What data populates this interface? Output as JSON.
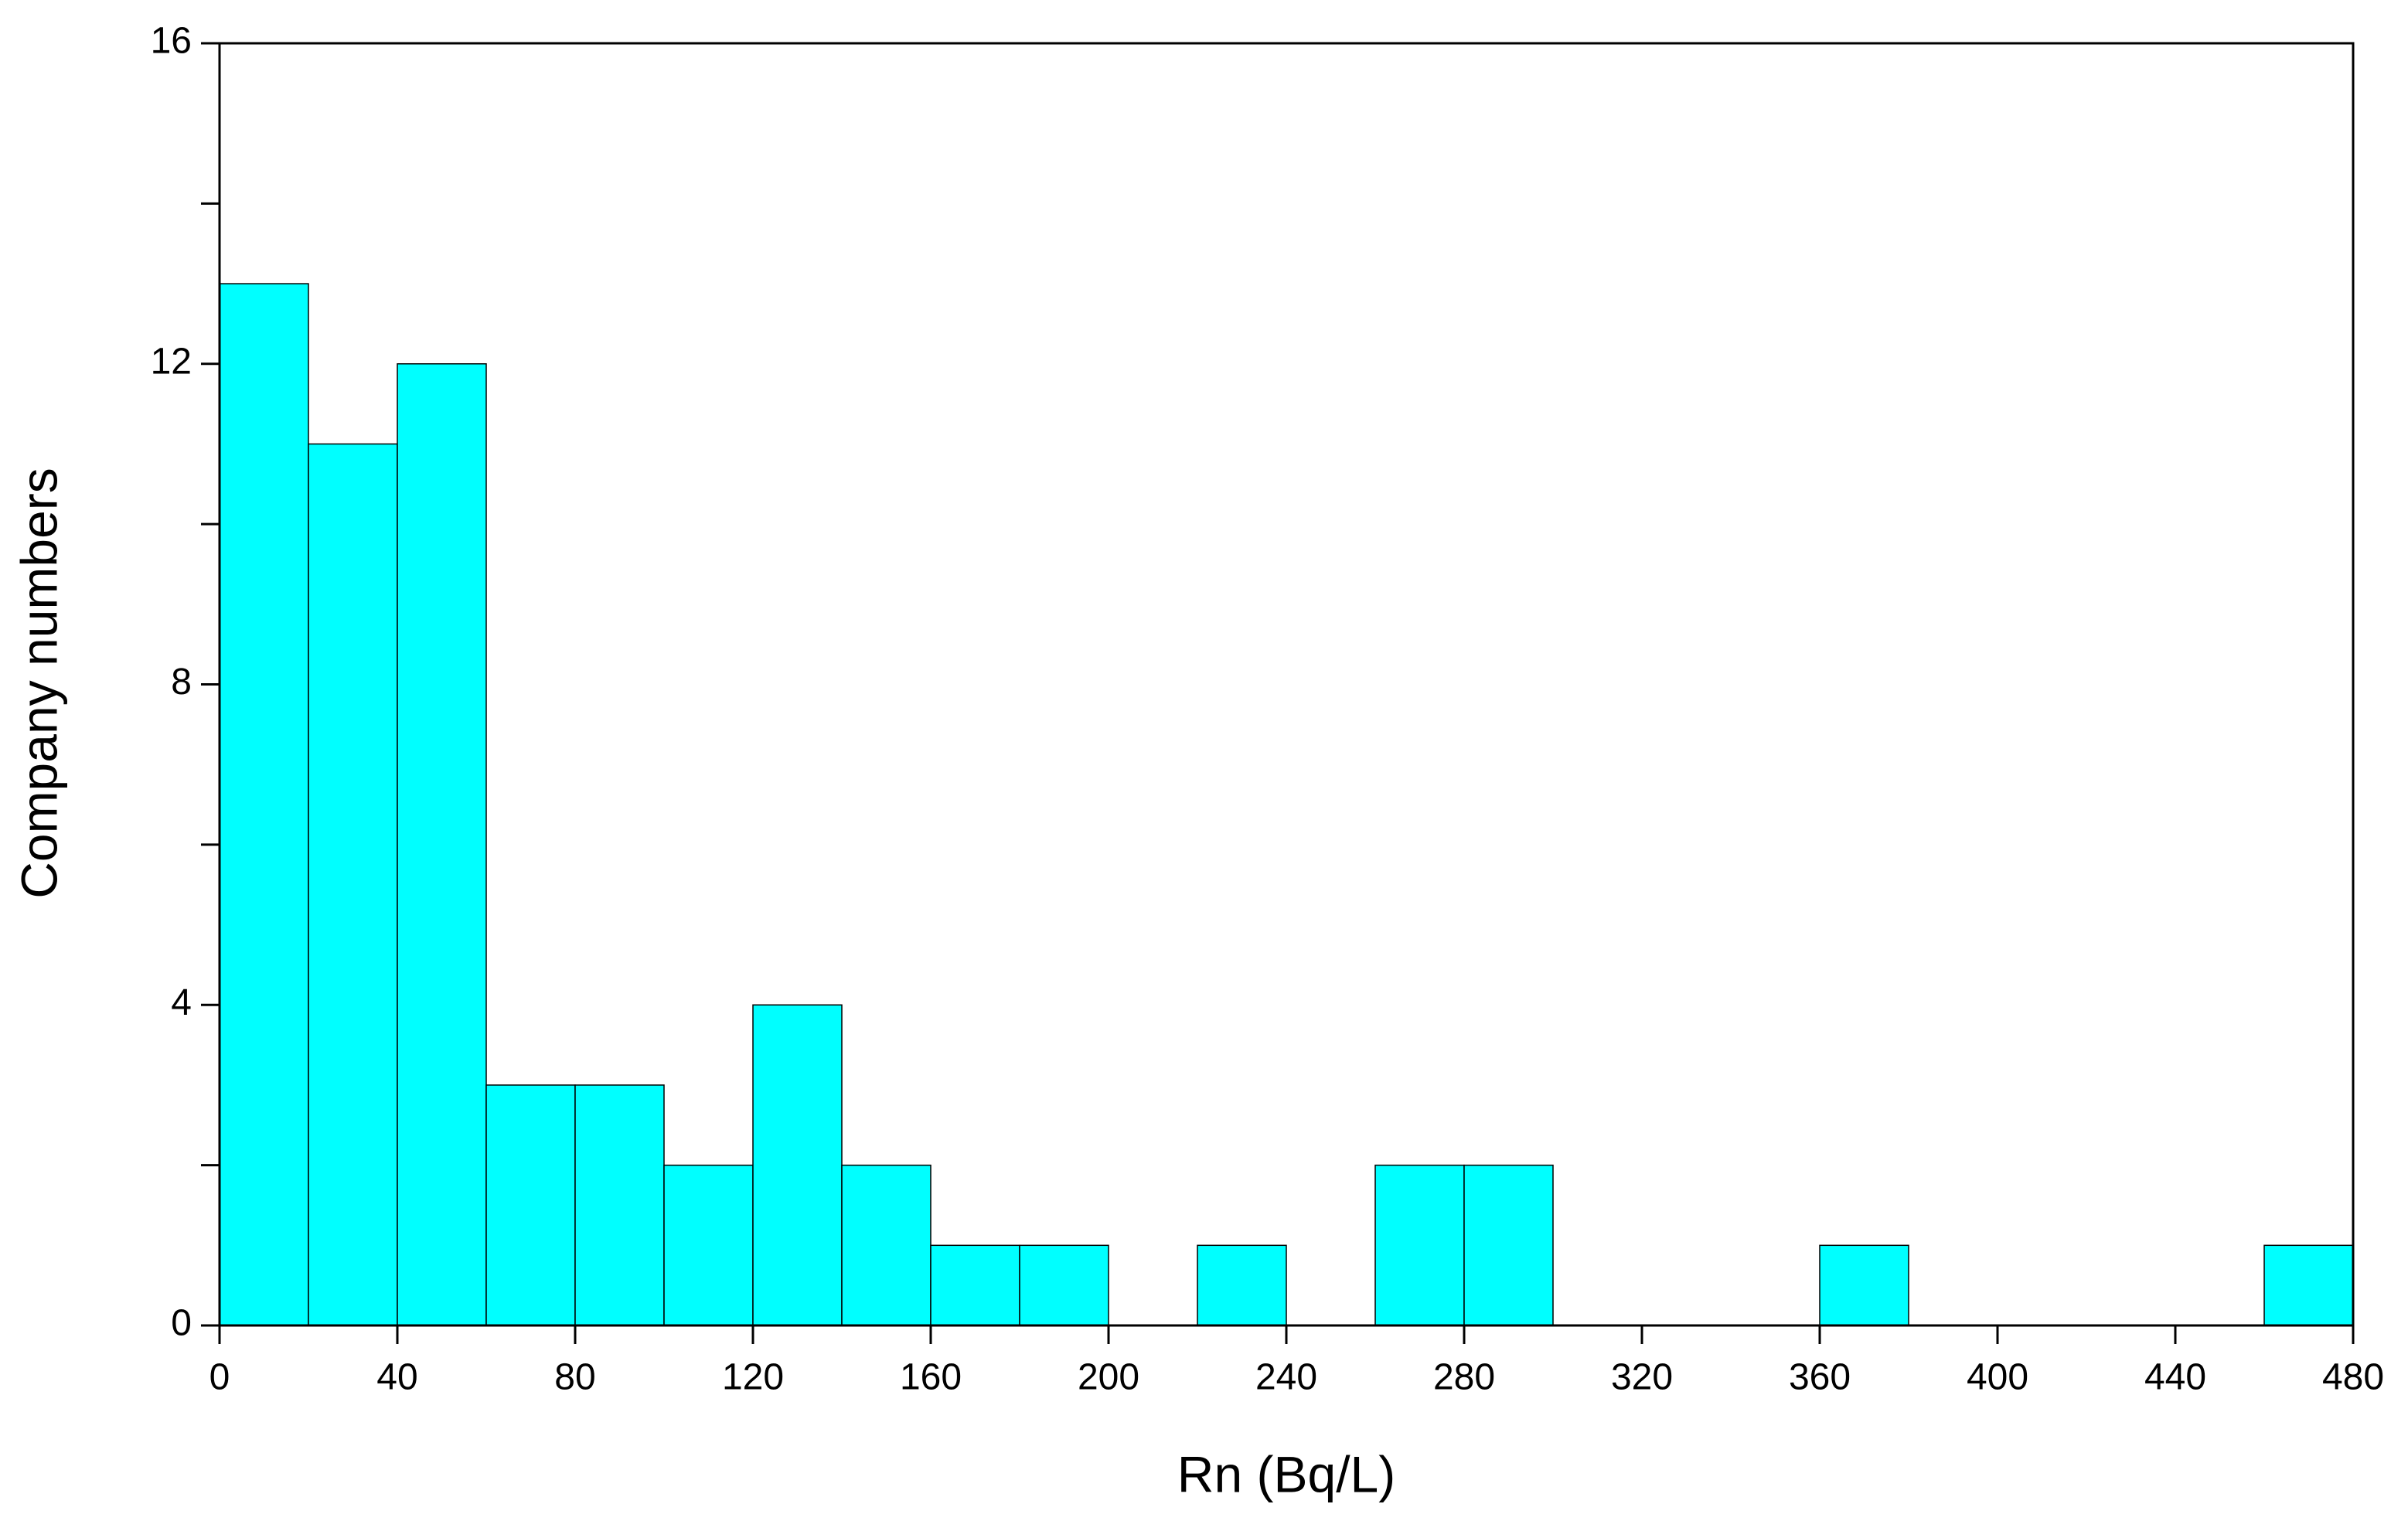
{
  "chart_data": {
    "type": "histogram",
    "xlabel": "Rn (Bq/L)",
    "ylabel": "Company numbers",
    "bins": [
      0,
      20,
      40,
      60,
      80,
      100,
      120,
      140,
      160,
      180,
      200,
      220,
      240,
      260,
      280,
      300,
      320,
      340,
      360,
      380,
      400,
      420,
      440,
      460,
      480
    ],
    "counts": [
      13,
      11,
      12,
      3,
      3,
      2,
      4,
      2,
      1,
      1,
      0,
      1,
      0,
      2,
      2,
      0,
      0,
      0,
      1,
      0,
      0,
      0,
      0,
      1
    ],
    "color": "#00ffff",
    "xlim": [
      0,
      480
    ],
    "xticks": [
      0,
      40,
      80,
      120,
      160,
      200,
      240,
      280,
      320,
      360,
      400,
      440,
      480
    ],
    "ylim": [
      0,
      16
    ],
    "yticks": [
      0,
      4,
      8,
      12,
      16
    ],
    "yminorticks": [
      2,
      6,
      10,
      14
    ],
    "grid": false
  }
}
